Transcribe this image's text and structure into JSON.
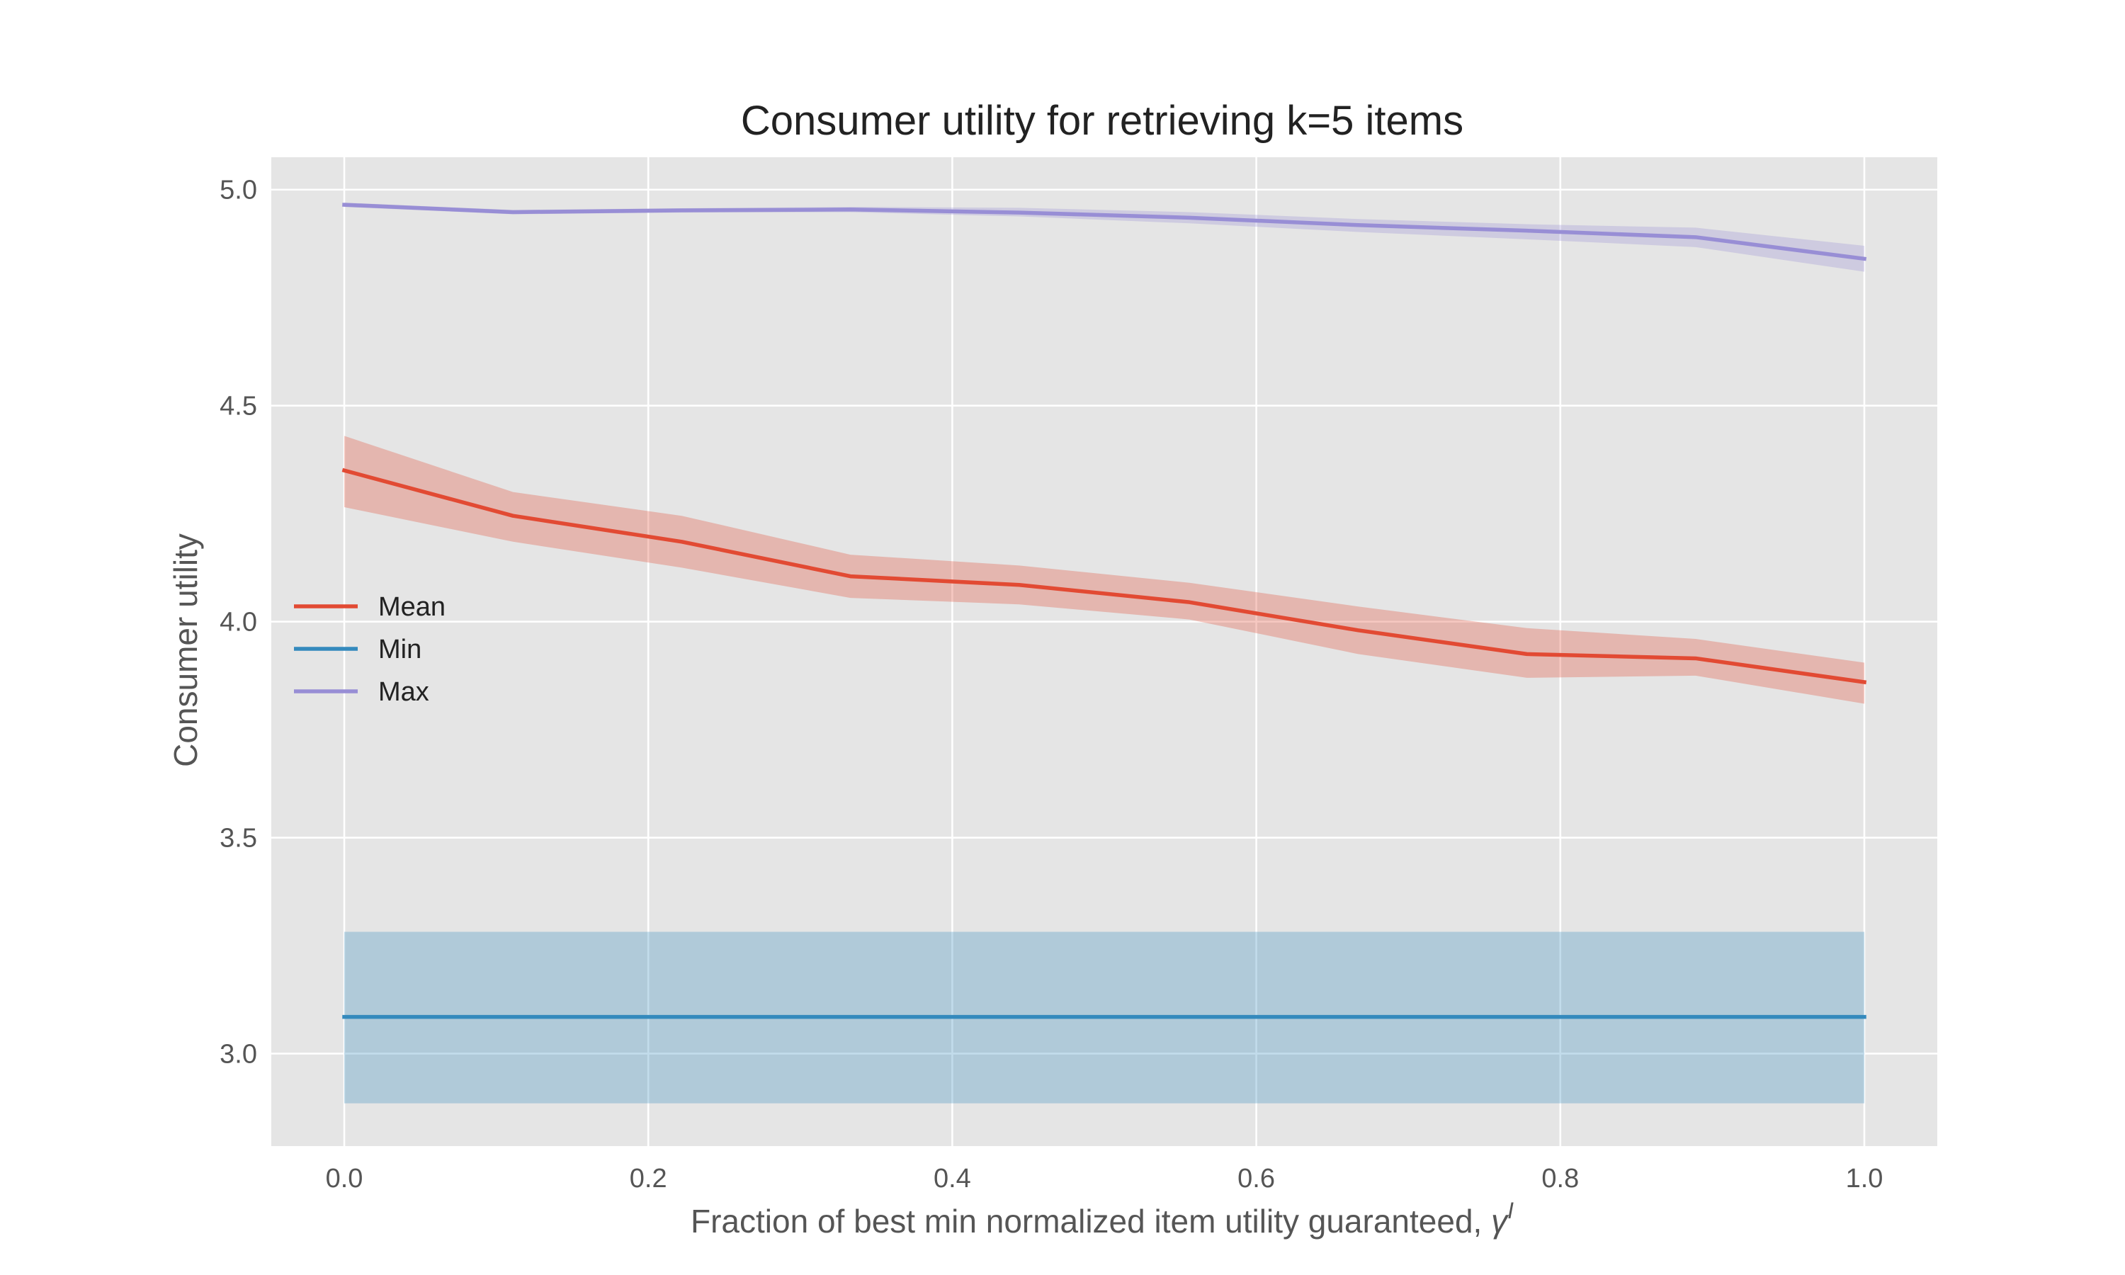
{
  "chart_data": {
    "type": "line",
    "title": "Consumer utility for retrieving k=5 items",
    "xlabel": "Fraction of best min normalized item utility guaranteed, ",
    "xlabel_symbol": "γ",
    "xlabel_superscript": "I",
    "ylabel": "Consumer utility",
    "xlim": [
      -0.048,
      1.048
    ],
    "ylim": [
      2.786,
      5.075
    ],
    "xticks": [
      0.0,
      0.2,
      0.4,
      0.6,
      0.8,
      1.0
    ],
    "xtick_labels": [
      "0.0",
      "0.2",
      "0.4",
      "0.6",
      "0.8",
      "1.0"
    ],
    "yticks": [
      3.0,
      3.5,
      4.0,
      4.5,
      5.0
    ],
    "ytick_labels": [
      "3.0",
      "3.5",
      "4.0",
      "4.5",
      "5.0"
    ],
    "grid": true,
    "legend_position": "center-left",
    "x": [
      0.0,
      0.111,
      0.222,
      0.333,
      0.444,
      0.556,
      0.667,
      0.778,
      0.889,
      1.0
    ],
    "series": [
      {
        "name": "Mean",
        "color": "#E24A33",
        "values": [
          4.35,
          4.245,
          4.185,
          4.105,
          4.085,
          4.045,
          3.98,
          3.925,
          3.915,
          3.86
        ],
        "lower": [
          4.265,
          4.185,
          4.125,
          4.055,
          4.04,
          4.005,
          3.925,
          3.87,
          3.875,
          3.81
        ],
        "upper": [
          4.43,
          4.3,
          4.245,
          4.155,
          4.13,
          4.09,
          4.035,
          3.985,
          3.96,
          3.905
        ]
      },
      {
        "name": "Min",
        "color": "#348ABD",
        "values": [
          3.085,
          3.085,
          3.085,
          3.085,
          3.085,
          3.085,
          3.085,
          3.085,
          3.085,
          3.085
        ],
        "lower": [
          2.885,
          2.885,
          2.885,
          2.885,
          2.885,
          2.885,
          2.885,
          2.885,
          2.885,
          2.885
        ],
        "upper": [
          3.282,
          3.282,
          3.282,
          3.282,
          3.282,
          3.282,
          3.282,
          3.282,
          3.282,
          3.282
        ]
      },
      {
        "name": "Max",
        "color": "#988ED5",
        "values": [
          4.965,
          4.948,
          4.952,
          4.954,
          4.947,
          4.935,
          4.918,
          4.905,
          4.89,
          4.84
        ],
        "lower": [
          4.96,
          4.943,
          4.947,
          4.948,
          4.938,
          4.922,
          4.902,
          4.885,
          4.867,
          4.81
        ],
        "upper": [
          4.97,
          4.953,
          4.957,
          4.96,
          4.958,
          4.948,
          4.932,
          4.92,
          4.912,
          4.87
        ]
      }
    ],
    "colors": {
      "background": "#E5E5E5",
      "grid": "#FFFFFF"
    }
  }
}
